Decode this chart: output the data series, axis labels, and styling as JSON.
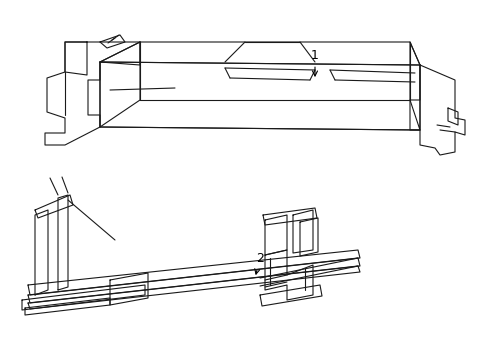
{
  "background_color": "#ffffff",
  "line_color": "#1a1a1a",
  "line_width": 0.8,
  "label_1": "1",
  "label_2": "2"
}
